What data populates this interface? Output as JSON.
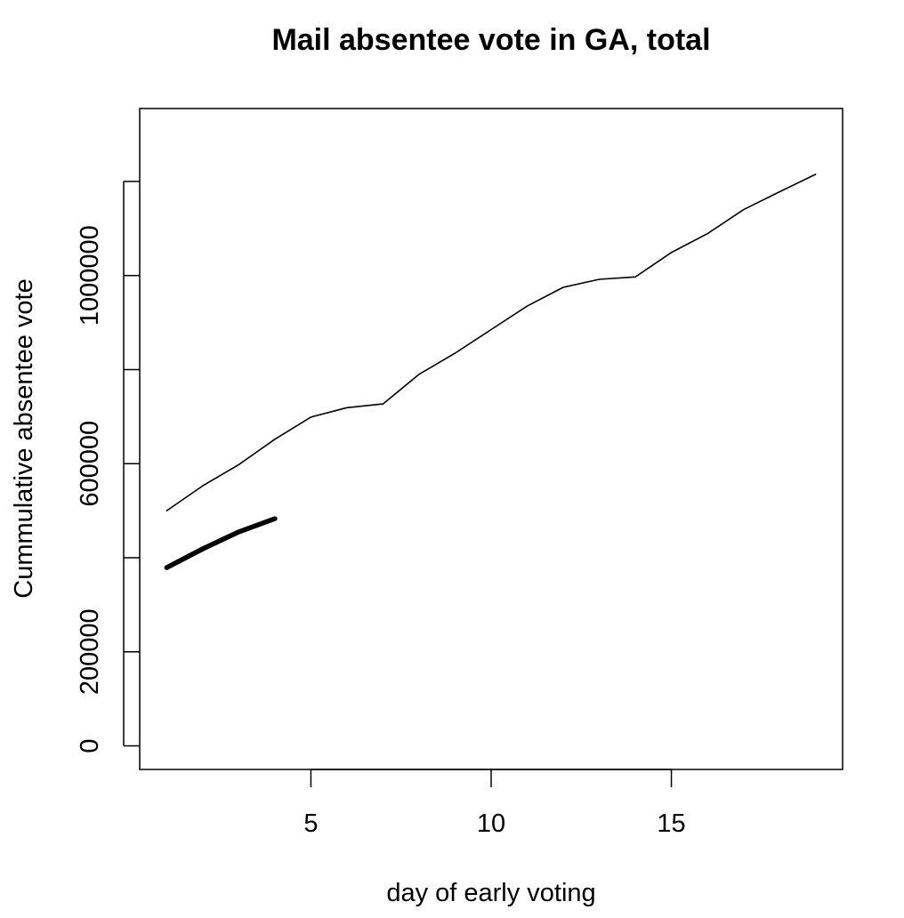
{
  "chart_data": {
    "type": "line",
    "title": "Mail absentee vote in GA, total",
    "xlabel": "day of early voting",
    "ylabel": "Cummulative absentee vote",
    "xlim": [
      0.25,
      19.75
    ],
    "ylim": [
      -50000,
      1355000
    ],
    "x_ticks": [
      5,
      10,
      15
    ],
    "x_tick_labels": [
      "5",
      "10",
      "15"
    ],
    "y_ticks": [
      0,
      200000,
      400000,
      600000,
      800000,
      1000000,
      1200000
    ],
    "y_tick_labels": [
      "0",
      "200000",
      "",
      "600000",
      "",
      "1000000",
      ""
    ],
    "grid": false,
    "legend": "none",
    "series": [
      {
        "x": [
          1,
          2,
          3,
          4,
          5,
          6,
          7,
          8,
          9,
          10,
          11,
          12,
          13,
          14,
          15,
          16,
          17,
          18,
          19
        ],
        "values": [
          500000,
          553000,
          598000,
          652000,
          699000,
          719000,
          727000,
          790000,
          835000,
          885000,
          935000,
          975000,
          992000,
          997000,
          1049000,
          1089000,
          1140000,
          1178000,
          1215000
        ],
        "line_width": "thin",
        "color": "#000000"
      },
      {
        "x": [
          1,
          2,
          3,
          4
        ],
        "values": [
          379000,
          419000,
          455000,
          483000
        ],
        "line_width": "thick",
        "color": "#000000"
      }
    ]
  }
}
